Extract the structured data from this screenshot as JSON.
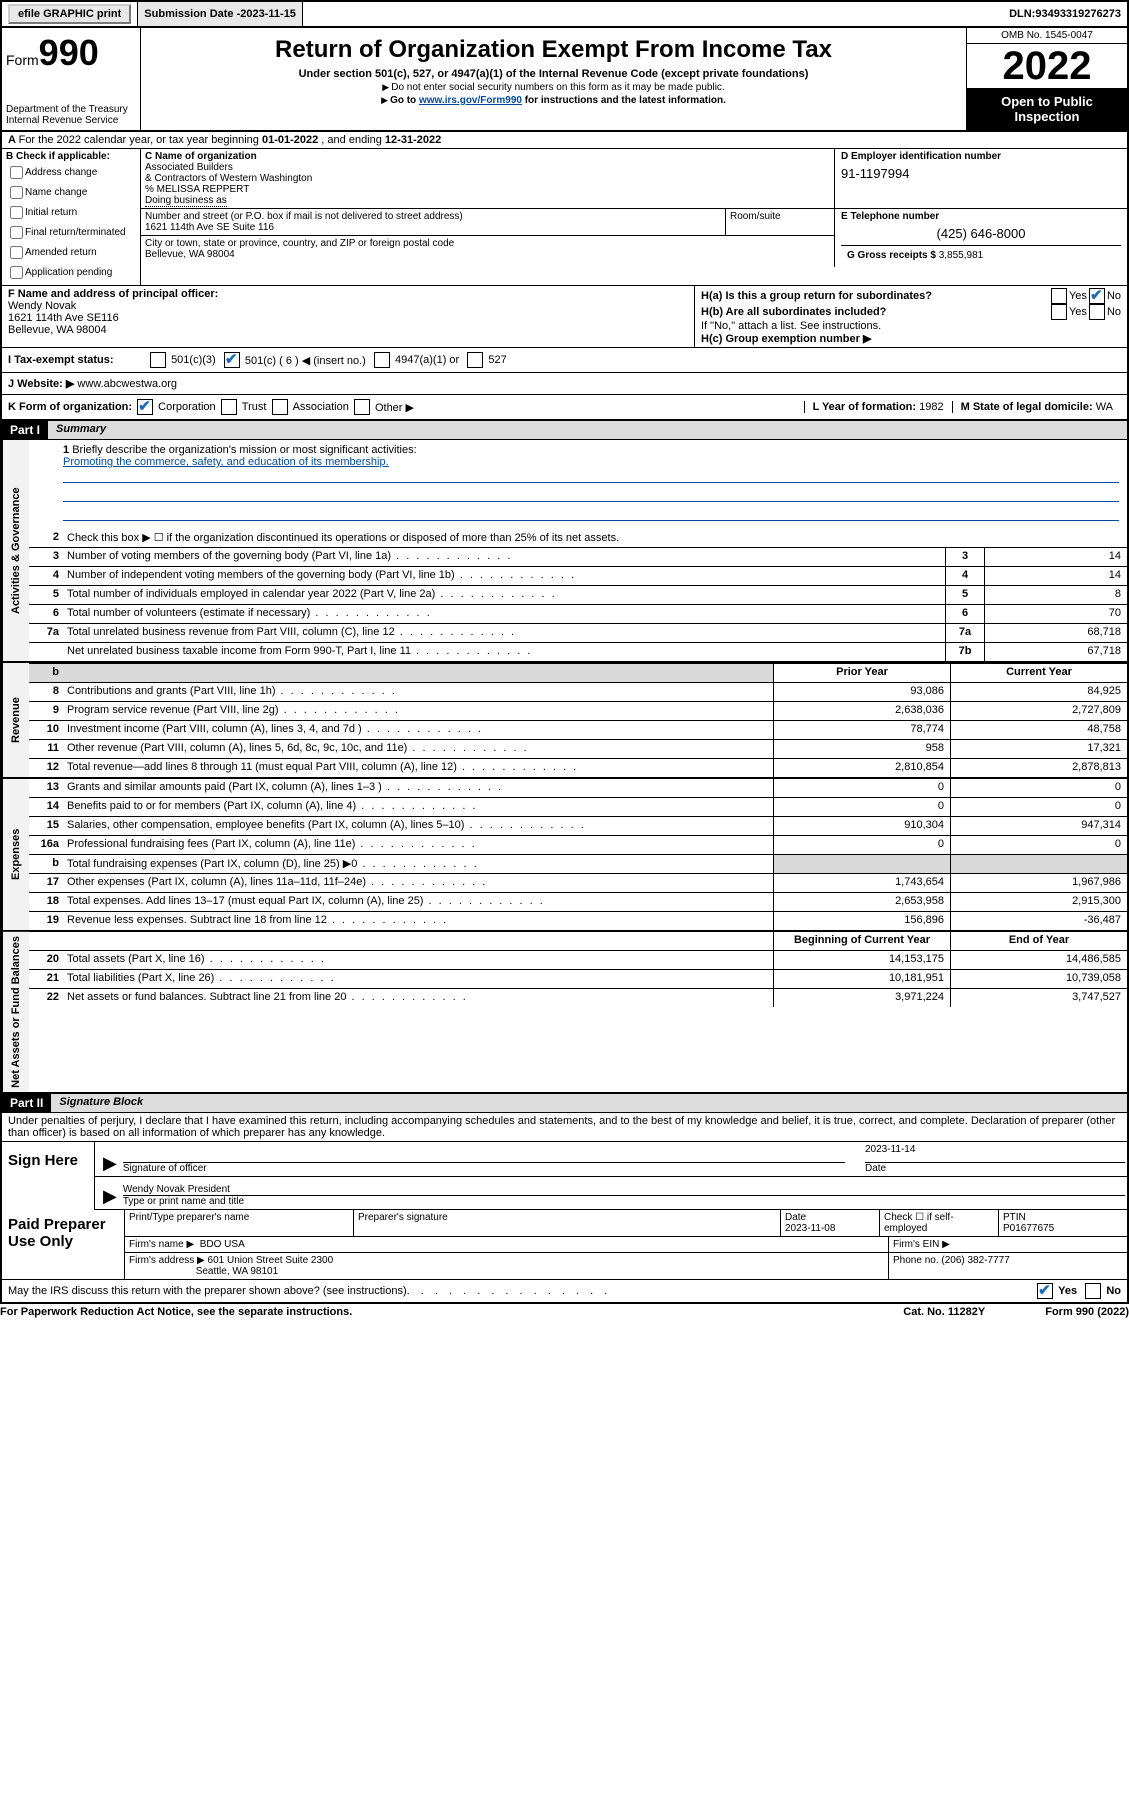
{
  "topbar": {
    "efile": "efile GRAPHIC print",
    "submission_label": "Submission Date - ",
    "submission_date": "2023-11-15",
    "dln_label": "DLN: ",
    "dln": "93493319276273"
  },
  "header": {
    "form_prefix": "Form",
    "form_number": "990",
    "title": "Return of Organization Exempt From Income Tax",
    "subtitle": "Under section 501(c), 527, or 4947(a)(1) of the Internal Revenue Code (except private foundations)",
    "note1": "Do not enter social security numbers on this form as it may be made public.",
    "note2_pre": "Go to ",
    "note2_link": "www.irs.gov/Form990",
    "note2_post": " for instructions and the latest information.",
    "dept": "Department of the Treasury\nInternal Revenue Service",
    "omb": "OMB No. 1545-0047",
    "year": "2022",
    "open": "Open to Public Inspection"
  },
  "row_a": {
    "text_pre": "For the 2022 calendar year, or tax year beginning ",
    "begin": "01-01-2022",
    "mid": "   , and ending ",
    "end": "12-31-2022"
  },
  "section_b": {
    "label": "B Check if applicable:",
    "opts": [
      "Address change",
      "Name change",
      "Initial return",
      "Final return/terminated",
      "Amended return",
      "Application pending"
    ]
  },
  "section_c": {
    "name_label": "C Name of organization",
    "name1": "Associated Builders",
    "name2": "& Contractors of Western Washington",
    "care_of": "% MELISSA REPPERT",
    "dba_label": "Doing business as",
    "street_label": "Number and street (or P.O. box if mail is not delivered to street address)",
    "room_label": "Room/suite",
    "street": "1621 114th Ave SE Suite 116",
    "city_label": "City or town, state or province, country, and ZIP or foreign postal code",
    "city": "Bellevue, WA  98004"
  },
  "section_d": {
    "label": "D Employer identification number",
    "ein": "91-1197994"
  },
  "section_e": {
    "label": "E Telephone number",
    "phone": "(425) 646-8000"
  },
  "section_g": {
    "label": "G Gross receipts $ ",
    "amount": "3,855,981"
  },
  "section_f": {
    "label": "F  Name and address of principal officer:",
    "name": "Wendy Novak",
    "addr1": "1621 114th Ave SE116",
    "addr2": "Bellevue, WA  98004"
  },
  "section_h": {
    "ha": "H(a)  Is this a group return for subordinates?",
    "hb": "H(b)  Are all subordinates included?",
    "hb_note": "If \"No,\" attach a list. See instructions.",
    "hc": "H(c)  Group exemption number ▶",
    "yes": "Yes",
    "no": "No"
  },
  "row_i": {
    "label": "I     Tax-exempt status:",
    "o1": "501(c)(3)",
    "o2": "501(c) ( 6 ) ◀ (insert no.)",
    "o3": "4947(a)(1) or",
    "o4": "527"
  },
  "row_j": {
    "label": "J     Website: ▶ ",
    "site": "www.abcwestwa.org"
  },
  "row_k": {
    "label": "K Form of organization:",
    "o1": "Corporation",
    "o2": "Trust",
    "o3": "Association",
    "o4": "Other ▶"
  },
  "row_l": {
    "label": "L Year of formation: ",
    "val": "1982"
  },
  "row_m": {
    "label": "M State of legal domicile: ",
    "val": "WA"
  },
  "part1": {
    "header": "Part I",
    "title": "Summary",
    "line1_label": "Briefly describe the organization's mission or most significant activities:",
    "line1_text": "Promoting the commerce, safety, and education of its membership.",
    "line2": "Check this box ▶ ☐  if the organization discontinued its operations or disposed of more than 25% of its net assets.",
    "sections": {
      "governance": "Activities & Governance",
      "revenue": "Revenue",
      "expenses": "Expenses",
      "netassets": "Net Assets or Fund Balances"
    },
    "col_prior": "Prior Year",
    "col_current": "Current Year",
    "col_begin": "Beginning of Current Year",
    "col_end": "End of Year",
    "lines_gov": [
      {
        "n": "3",
        "d": "Number of voting members of the governing body (Part VI, line 1a)",
        "box": "3",
        "val": "14"
      },
      {
        "n": "4",
        "d": "Number of independent voting members of the governing body (Part VI, line 1b)",
        "box": "4",
        "val": "14"
      },
      {
        "n": "5",
        "d": "Total number of individuals employed in calendar year 2022 (Part V, line 2a)",
        "box": "5",
        "val": "8"
      },
      {
        "n": "6",
        "d": "Total number of volunteers (estimate if necessary)",
        "box": "6",
        "val": "70"
      },
      {
        "n": "7a",
        "d": "Total unrelated business revenue from Part VIII, column (C), line 12",
        "box": "7a",
        "val": "68,718"
      },
      {
        "n": "",
        "d": "Net unrelated business taxable income from Form 990-T, Part I, line 11",
        "box": "7b",
        "val": "67,718"
      }
    ],
    "lines_rev": [
      {
        "n": "8",
        "d": "Contributions and grants (Part VIII, line 1h)",
        "p": "93,086",
        "c": "84,925"
      },
      {
        "n": "9",
        "d": "Program service revenue (Part VIII, line 2g)",
        "p": "2,638,036",
        "c": "2,727,809"
      },
      {
        "n": "10",
        "d": "Investment income (Part VIII, column (A), lines 3, 4, and 7d )",
        "p": "78,774",
        "c": "48,758"
      },
      {
        "n": "11",
        "d": "Other revenue (Part VIII, column (A), lines 5, 6d, 8c, 9c, 10c, and 11e)",
        "p": "958",
        "c": "17,321"
      },
      {
        "n": "12",
        "d": "Total revenue—add lines 8 through 11 (must equal Part VIII, column (A), line 12)",
        "p": "2,810,854",
        "c": "2,878,813"
      }
    ],
    "lines_exp": [
      {
        "n": "13",
        "d": "Grants and similar amounts paid (Part IX, column (A), lines 1–3 )",
        "p": "0",
        "c": "0"
      },
      {
        "n": "14",
        "d": "Benefits paid to or for members (Part IX, column (A), line 4)",
        "p": "0",
        "c": "0"
      },
      {
        "n": "15",
        "d": "Salaries, other compensation, employee benefits (Part IX, column (A), lines 5–10)",
        "p": "910,304",
        "c": "947,314"
      },
      {
        "n": "16a",
        "d": "Professional fundraising fees (Part IX, column (A), line 11e)",
        "p": "0",
        "c": "0"
      },
      {
        "n": "b",
        "d": "Total fundraising expenses (Part IX, column (D), line 25) ▶0",
        "p": "",
        "c": "",
        "shaded": true
      },
      {
        "n": "17",
        "d": "Other expenses (Part IX, column (A), lines 11a–11d, 11f–24e)",
        "p": "1,743,654",
        "c": "1,967,986"
      },
      {
        "n": "18",
        "d": "Total expenses. Add lines 13–17 (must equal Part IX, column (A), line 25)",
        "p": "2,653,958",
        "c": "2,915,300"
      },
      {
        "n": "19",
        "d": "Revenue less expenses. Subtract line 18 from line 12",
        "p": "156,896",
        "c": "-36,487"
      }
    ],
    "lines_net": [
      {
        "n": "20",
        "d": "Total assets (Part X, line 16)",
        "p": "14,153,175",
        "c": "14,486,585"
      },
      {
        "n": "21",
        "d": "Total liabilities (Part X, line 26)",
        "p": "10,181,951",
        "c": "10,739,058"
      },
      {
        "n": "22",
        "d": "Net assets or fund balances. Subtract line 21 from line 20",
        "p": "3,971,224",
        "c": "3,747,527"
      }
    ]
  },
  "part2": {
    "header": "Part II",
    "title": "Signature Block",
    "intro": "Under penalties of perjury, I declare that I have examined this return, including accompanying schedules and statements, and to the best of my knowledge and belief, it is true, correct, and complete. Declaration of preparer (other than officer) is based on all information of which preparer has any knowledge.",
    "sign_here": "Sign Here",
    "sig_officer": "Signature of officer",
    "sig_date_label": "Date",
    "sig_date": "2023-11-14",
    "officer_name": "Wendy Novak  President",
    "officer_name_label": "Type or print name and title",
    "paid_prep": "Paid Preparer Use Only",
    "prep_name_label": "Print/Type preparer's name",
    "prep_sig_label": "Preparer's signature",
    "prep_date_label": "Date",
    "prep_date": "2023-11-08",
    "prep_check": "Check ☐ if self-employed",
    "ptin_label": "PTIN",
    "ptin": "P01677675",
    "firm_name_label": "Firm's name      ▶",
    "firm_name": "BDO USA",
    "firm_ein_label": "Firm's EIN ▶",
    "firm_addr_label": "Firm's address ▶",
    "firm_addr1": "601 Union Street Suite 2300",
    "firm_addr2": "Seattle, WA  98101",
    "firm_phone_label": "Phone no. ",
    "firm_phone": "(206) 382-7777",
    "discuss": "May the IRS discuss this return with the preparer shown above? (see instructions)",
    "yes": "Yes",
    "no": "No"
  },
  "footer": {
    "paperwork": "For Paperwork Reduction Act Notice, see the separate instructions.",
    "cat": "Cat. No. 11282Y",
    "form": "Form 990 (2022)"
  }
}
